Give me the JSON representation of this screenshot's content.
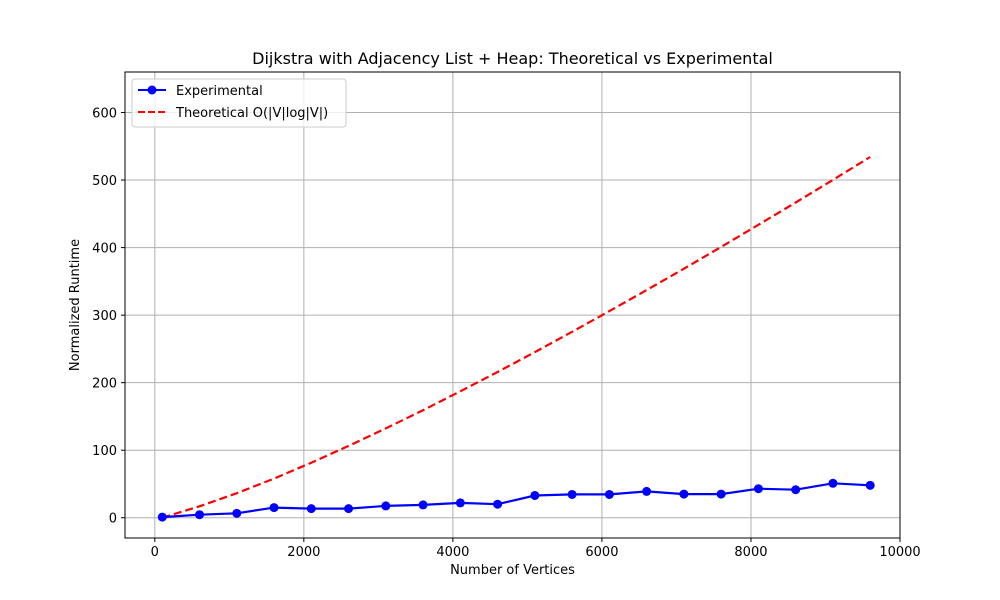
{
  "chart_data": {
    "type": "line",
    "title": "Dijkstra with Adjacency List + Heap: Theoretical vs Experimental",
    "xlabel": "Number of Vertices",
    "ylabel": "Normalized Runtime",
    "xlim": [
      -400,
      10000
    ],
    "ylim": [
      -30,
      660
    ],
    "xticks": [
      0,
      2000,
      4000,
      6000,
      8000,
      10000
    ],
    "yticks": [
      0,
      100,
      200,
      300,
      400,
      500,
      600
    ],
    "grid": true,
    "legend_position": "top-left",
    "x": [
      100,
      600,
      1100,
      1600,
      2100,
      2600,
      3100,
      3600,
      4100,
      4600,
      5100,
      5600,
      6100,
      6600,
      7100,
      7600,
      8100,
      8600,
      9100,
      9600
    ],
    "series": [
      {
        "name": "Experimental",
        "style": "solid-with-markers",
        "color": "#0000ff",
        "values": [
          1,
          4.5,
          6.5,
          15,
          13.5,
          13.5,
          17.5,
          19,
          22,
          20,
          33,
          34.5,
          34.5,
          39,
          35,
          35,
          43,
          41.5,
          51,
          48
        ]
      },
      {
        "name": "Theoretical O(|V|log|V|)",
        "style": "dashed",
        "color": "#ff0000",
        "values": [
          0,
          16.9,
          36.3,
          58.0,
          81.5,
          106.3,
          132.3,
          159.3,
          187.2,
          215.8,
          245.2,
          275.3,
          305.9,
          337.1,
          368.8,
          401.0,
          433.7,
          466.8,
          500.3,
          534.2
        ]
      }
    ]
  }
}
